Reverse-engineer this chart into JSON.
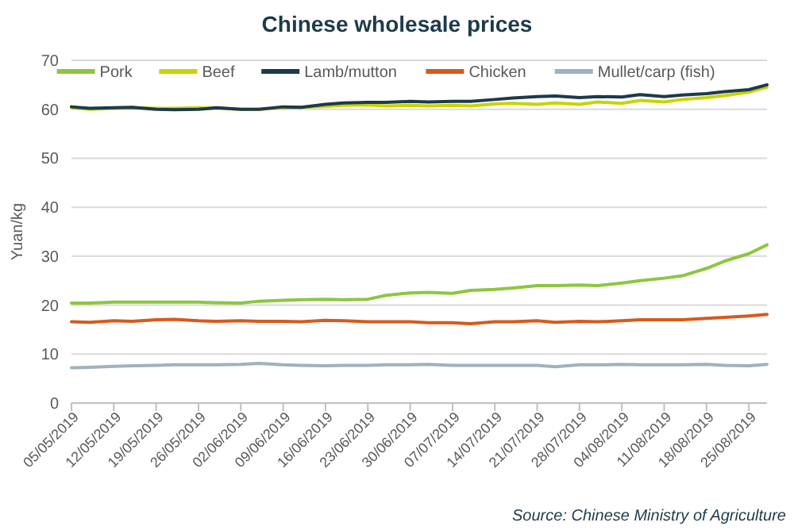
{
  "chart_data": {
    "type": "line",
    "title": "Chinese wholesale prices",
    "ylabel": "Yuan/kg",
    "annotations": [
      "Source: Chinese Ministry of Agriculture"
    ],
    "x": [
      "2019-05-05",
      "2019-05-08",
      "2019-05-12",
      "2019-05-15",
      "2019-05-19",
      "2019-05-22",
      "2019-05-26",
      "2019-05-29",
      "2019-06-02",
      "2019-06-05",
      "2019-06-09",
      "2019-06-12",
      "2019-06-16",
      "2019-06-19",
      "2019-06-23",
      "2019-06-26",
      "2019-06-30",
      "2019-07-03",
      "2019-07-07",
      "2019-07-10",
      "2019-07-14",
      "2019-07-17",
      "2019-07-21",
      "2019-07-24",
      "2019-07-28",
      "2019-07-31",
      "2019-08-04",
      "2019-08-07",
      "2019-08-11",
      "2019-08-14",
      "2019-08-18",
      "2019-08-21",
      "2019-08-25",
      "2019-08-28"
    ],
    "series": [
      {
        "name": "Pork",
        "color": "#8dc63f",
        "values": [
          20.4,
          20.4,
          20.6,
          20.6,
          20.6,
          20.6,
          20.6,
          20.5,
          20.4,
          20.8,
          21.0,
          21.1,
          21.2,
          21.1,
          21.2,
          22.0,
          22.5,
          22.6,
          22.4,
          23.0,
          23.2,
          23.5,
          24.0,
          24.0,
          24.1,
          24.0,
          24.5,
          25.0,
          25.5,
          26.0,
          27.5,
          29.0,
          30.5,
          32.3
        ]
      },
      {
        "name": "Beef",
        "color": "#c8d400",
        "values": [
          60.3,
          60.0,
          60.2,
          60.3,
          60.2,
          60.2,
          60.3,
          60.2,
          60.0,
          60.0,
          60.3,
          60.4,
          60.6,
          60.8,
          60.9,
          60.7,
          60.8,
          60.7,
          60.8,
          60.7,
          61.1,
          61.2,
          61.0,
          61.3,
          61.0,
          61.5,
          61.2,
          61.8,
          61.5,
          62.0,
          62.4,
          62.8,
          63.5,
          64.5
        ]
      },
      {
        "name": "Lamb/mutton",
        "color": "#1d3a4a",
        "values": [
          60.5,
          60.2,
          60.3,
          60.4,
          60.0,
          59.9,
          60.0,
          60.3,
          60.0,
          60.0,
          60.5,
          60.4,
          61.0,
          61.3,
          61.4,
          61.4,
          61.6,
          61.5,
          61.6,
          61.6,
          62.0,
          62.3,
          62.6,
          62.7,
          62.4,
          62.6,
          62.5,
          63.0,
          62.6,
          62.9,
          63.2,
          63.6,
          64.0,
          65.0
        ]
      },
      {
        "name": "Chicken",
        "color": "#d65a1e",
        "values": [
          16.6,
          16.5,
          16.8,
          16.7,
          17.0,
          17.1,
          16.8,
          16.7,
          16.8,
          16.7,
          16.7,
          16.6,
          16.9,
          16.8,
          16.6,
          16.6,
          16.6,
          16.4,
          16.4,
          16.2,
          16.6,
          16.6,
          16.8,
          16.5,
          16.7,
          16.6,
          16.8,
          17.0,
          17.0,
          17.0,
          17.3,
          17.5,
          17.8,
          18.1
        ]
      },
      {
        "name": "Mullet/carp (fish)",
        "color": "#9fb2bd",
        "values": [
          7.2,
          7.3,
          7.5,
          7.6,
          7.7,
          7.8,
          7.8,
          7.8,
          7.9,
          8.1,
          7.8,
          7.7,
          7.6,
          7.7,
          7.7,
          7.8,
          7.8,
          7.9,
          7.7,
          7.7,
          7.7,
          7.7,
          7.7,
          7.4,
          7.8,
          7.8,
          7.9,
          7.8,
          7.8,
          7.8,
          7.9,
          7.7,
          7.6,
          7.9
        ]
      }
    ],
    "xlim": [
      "2019-05-05",
      "2019-08-28"
    ],
    "xticks": [
      {
        "value": "2019-05-05",
        "label": "05/05/2019"
      },
      {
        "value": "2019-05-12",
        "label": "12/05/2019"
      },
      {
        "value": "2019-05-19",
        "label": "19/05/2019"
      },
      {
        "value": "2019-05-26",
        "label": "26/05/2019"
      },
      {
        "value": "2019-06-02",
        "label": "02/06/2019"
      },
      {
        "value": "2019-06-09",
        "label": "09/06/2019"
      },
      {
        "value": "2019-06-16",
        "label": "16/06/2019"
      },
      {
        "value": "2019-06-23",
        "label": "23/06/2019"
      },
      {
        "value": "2019-06-30",
        "label": "30/06/2019"
      },
      {
        "value": "2019-07-07",
        "label": "07/07/2019"
      },
      {
        "value": "2019-07-14",
        "label": "14/07/2019"
      },
      {
        "value": "2019-07-21",
        "label": "21/07/2019"
      },
      {
        "value": "2019-07-28",
        "label": "28/07/2019"
      },
      {
        "value": "2019-08-04",
        "label": "04/08/2019"
      },
      {
        "value": "2019-08-11",
        "label": "11/08/2019"
      },
      {
        "value": "2019-08-18",
        "label": "18/08/2019"
      },
      {
        "value": "2019-08-25",
        "label": "25/08/2019"
      }
    ],
    "ylim": [
      0,
      70
    ],
    "yticks": [
      0,
      10,
      20,
      30,
      40,
      50,
      60,
      70
    ],
    "grid": "y",
    "legend": "top",
    "marker": "none",
    "line_style": "solid"
  }
}
